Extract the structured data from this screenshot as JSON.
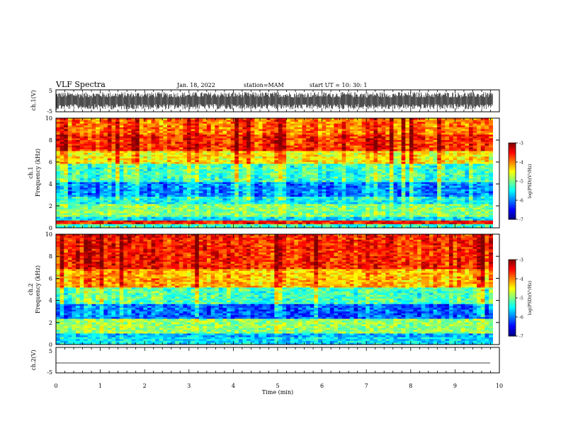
{
  "header": {
    "title": "VLF Spectra",
    "date": "Jan. 18, 2022",
    "station": "station=MAM",
    "start": "start  UT =   10: 30: 1"
  },
  "colorbar": {
    "label": "log(PSD)(V²/Hz)",
    "min": -7,
    "max": -3,
    "ticks": [
      "-3",
      "-4",
      "-5",
      "-6",
      "-7"
    ]
  },
  "chart_data": [
    {
      "type": "line",
      "panel": "ch1-waveform",
      "ylabel": "ch.1(V)",
      "ylim": [
        -5,
        5
      ],
      "yticks": [
        "5",
        "-5"
      ],
      "xlim": [
        0,
        10
      ],
      "description_values": {
        "signal_amplitude_range_V": [
          -4,
          4
        ]
      }
    },
    {
      "type": "heatmap",
      "panel": "ch1-spectrogram",
      "ylabel": "ch.1\nFrequency (kHz)",
      "ylabel_lines": [
        "ch.1",
        "Frequency (kHz)"
      ],
      "ylim": [
        0,
        10
      ],
      "yticks": [
        "0",
        "2",
        "4",
        "6",
        "8",
        "10"
      ],
      "xlim": [
        0,
        9.85
      ],
      "colormap": "jet",
      "clim": [
        -7,
        -3
      ],
      "bands": [
        {
          "freq_kHz": [
            0,
            0.3
          ],
          "logPSD": -5.3
        },
        {
          "freq_kHz": [
            0.3,
            0.6
          ],
          "logPSD": -3.6
        },
        {
          "freq_kHz": [
            0.6,
            1.0
          ],
          "logPSD": -5.6
        },
        {
          "freq_kHz": [
            1.0,
            2.2
          ],
          "logPSD": -5.0
        },
        {
          "freq_kHz": [
            2.2,
            2.8
          ],
          "logPSD": -5.5
        },
        {
          "freq_kHz": [
            2.8,
            4.2
          ],
          "logPSD": -6.0
        },
        {
          "freq_kHz": [
            4.2,
            5.8
          ],
          "logPSD": -5.3
        },
        {
          "freq_kHz": [
            5.8,
            7.0
          ],
          "logPSD": -4.5
        },
        {
          "freq_kHz": [
            7.0,
            8.5
          ],
          "logPSD": -3.7
        },
        {
          "freq_kHz": [
            8.5,
            10.0
          ],
          "logPSD": -4.0
        }
      ]
    },
    {
      "type": "heatmap",
      "panel": "ch2-spectrogram",
      "ylabel_lines": [
        "ch.2",
        "Frequency (kHz)"
      ],
      "ylim": [
        0,
        10
      ],
      "yticks": [
        "0",
        "2",
        "4",
        "6",
        "8",
        "10"
      ],
      "xlim": [
        0,
        9.85
      ],
      "colormap": "jet",
      "clim": [
        -7,
        -3
      ],
      "bands": [
        {
          "freq_kHz": [
            0,
            0.6
          ],
          "logPSD": -5.6
        },
        {
          "freq_kHz": [
            0.6,
            1.0
          ],
          "logPSD": -5.8
        },
        {
          "freq_kHz": [
            1.0,
            2.4
          ],
          "logPSD": -4.9
        },
        {
          "freq_kHz": [
            2.4,
            3.6
          ],
          "logPSD": -6.1
        },
        {
          "freq_kHz": [
            3.6,
            5.2
          ],
          "logPSD": -5.2
        },
        {
          "freq_kHz": [
            5.2,
            6.8
          ],
          "logPSD": -4.2
        },
        {
          "freq_kHz": [
            6.8,
            10.0
          ],
          "logPSD": -3.6
        }
      ]
    },
    {
      "type": "line",
      "panel": "ch2-waveform",
      "ylabel": "ch.2(V)",
      "ylim": [
        -5,
        5
      ],
      "yticks": [
        "5",
        "-5"
      ],
      "xlim": [
        0,
        9.85
      ],
      "x": [
        0,
        9.85
      ],
      "y": [
        -2.8,
        -2.8
      ]
    }
  ],
  "xaxis": {
    "label": "Time (min)",
    "range": [
      0,
      10
    ],
    "ticks": [
      "0",
      "1",
      "2",
      "3",
      "4",
      "5",
      "6",
      "7",
      "8",
      "9",
      "10"
    ]
  }
}
